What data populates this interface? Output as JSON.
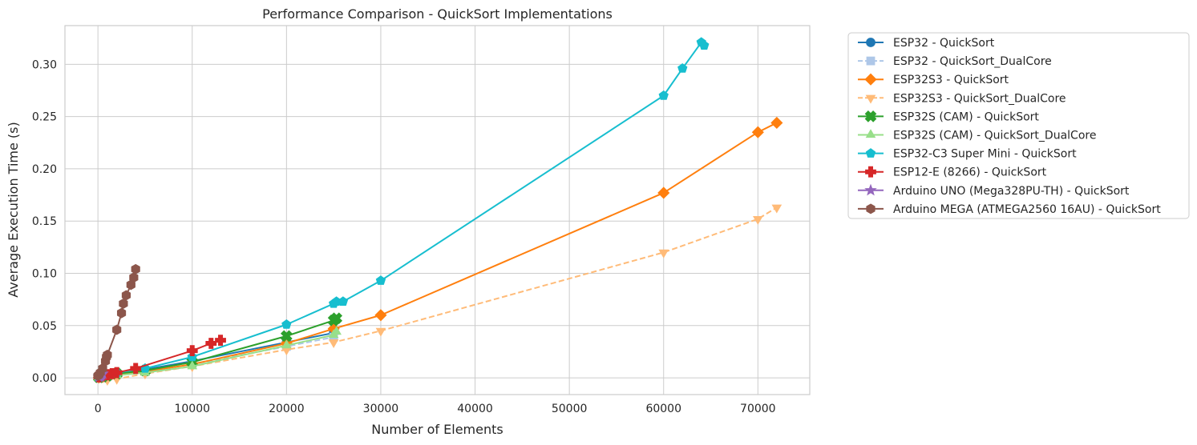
{
  "chart_data": {
    "type": "line",
    "title": "Performance Comparison - QuickSort Implementations",
    "xlabel": "Number of Elements",
    "ylabel": "Average Execution Time (s)",
    "xlim": [
      -3500,
      75500
    ],
    "ylim": [
      -0.016,
      0.337
    ],
    "xticks": [
      0,
      10000,
      20000,
      30000,
      40000,
      50000,
      60000,
      70000
    ],
    "yticks": [
      0.0,
      0.05,
      0.1,
      0.15,
      0.2,
      0.25,
      0.3
    ],
    "xtick_labels": [
      "0",
      "10000",
      "20000",
      "30000",
      "40000",
      "50000",
      "60000",
      "70000"
    ],
    "ytick_labels": [
      "0.00",
      "0.05",
      "0.10",
      "0.15",
      "0.20",
      "0.25",
      "0.30"
    ],
    "grid": true,
    "legend_position": "outside-right",
    "series": [
      {
        "name": "ESP32 - QuickSort",
        "color": "#1f77b4",
        "marker": "circle",
        "dash": "solid",
        "x": [
          100,
          500,
          1000,
          2000,
          5000,
          10000,
          20000,
          25000
        ],
        "y": [
          0.0005,
          0.001,
          0.002,
          0.004,
          0.008,
          0.016,
          0.034,
          0.043
        ]
      },
      {
        "name": "ESP32 - QuickSort_DualCore",
        "color": "#aec7e8",
        "marker": "square",
        "dash": "dashed",
        "x": [
          100,
          500,
          1000,
          2000,
          5000,
          10000,
          20000,
          25000
        ],
        "y": [
          0.0004,
          0.0008,
          0.0015,
          0.003,
          0.006,
          0.013,
          0.03,
          0.039
        ]
      },
      {
        "name": "ESP32S3 - QuickSort",
        "color": "#ff7f0e",
        "marker": "diamond",
        "dash": "solid",
        "x": [
          100,
          500,
          1000,
          2000,
          5000,
          10000,
          20000,
          25000,
          30000,
          60000,
          70000,
          72000
        ],
        "y": [
          0.0003,
          0.0008,
          0.0015,
          0.003,
          0.006,
          0.013,
          0.033,
          0.047,
          0.06,
          0.177,
          0.235,
          0.244
        ]
      },
      {
        "name": "ESP32S3 - QuickSort_DualCore",
        "color": "#ffbb78",
        "marker": "triangle-down",
        "dash": "dashed",
        "x": [
          100,
          1000,
          2000,
          5000,
          10000,
          20000,
          25000,
          30000,
          60000,
          70000,
          72000
        ],
        "y": [
          0.0003,
          -0.002,
          -0.001,
          0.004,
          0.011,
          0.027,
          0.034,
          0.045,
          0.12,
          0.152,
          0.163
        ]
      },
      {
        "name": "ESP32S (CAM) - QuickSort",
        "color": "#2ca02c",
        "marker": "x-filled",
        "dash": "solid",
        "x": [
          100,
          500,
          1000,
          2000,
          5000,
          10000,
          20000,
          25000,
          25300
        ],
        "y": [
          0.0005,
          0.001,
          0.002,
          0.004,
          0.007,
          0.015,
          0.04,
          0.055,
          0.057
        ]
      },
      {
        "name": "ESP32S (CAM) - QuickSort_DualCore",
        "color": "#98df8a",
        "marker": "triangle-up",
        "dash": "solid",
        "x": [
          100,
          1000,
          2000,
          5000,
          10000,
          20000,
          25000,
          25300
        ],
        "y": [
          0.0003,
          0.0015,
          0.0025,
          0.005,
          0.011,
          0.031,
          0.041,
          0.044
        ]
      },
      {
        "name": "ESP32-C3 Super Mini - QuickSort",
        "color": "#17becf",
        "marker": "pentagon",
        "dash": "solid",
        "x": [
          100,
          500,
          1000,
          2000,
          5000,
          10000,
          20000,
          25000,
          25300,
          26000,
          30000,
          60000,
          62000,
          64000,
          64300
        ],
        "y": [
          0.0005,
          0.0015,
          0.003,
          0.005,
          0.009,
          0.02,
          0.051,
          0.071,
          0.073,
          0.073,
          0.093,
          0.27,
          0.296,
          0.321,
          0.318
        ]
      },
      {
        "name": "ESP12-E (8266) - QuickSort",
        "color": "#d62728",
        "marker": "plus-filled",
        "dash": "solid",
        "x": [
          100,
          500,
          1000,
          1500,
          2000,
          4000,
          10000,
          12000,
          13000
        ],
        "y": [
          0.001,
          0.002,
          0.003,
          0.004,
          0.005,
          0.009,
          0.026,
          0.033,
          0.036
        ]
      },
      {
        "name": "Arduino UNO (Mega328PU-TH) - QuickSort",
        "color": "#9467bd",
        "marker": "star",
        "dash": "solid",
        "x": [
          100,
          200,
          300,
          400,
          500
        ],
        "y": [
          0.001,
          0.0015,
          0.002,
          0.003,
          0.004
        ]
      },
      {
        "name": "Arduino MEGA (ATMEGA2560 16AU) - QuickSort",
        "color": "#8c564b",
        "marker": "hexagon",
        "dash": "solid",
        "x": [
          0,
          100,
          250,
          500,
          800,
          900,
          1000,
          2000,
          2500,
          2700,
          3000,
          3500,
          3800,
          4000
        ],
        "y": [
          0.002,
          0.003,
          0.005,
          0.009,
          0.016,
          0.02,
          0.022,
          0.046,
          0.062,
          0.071,
          0.079,
          0.089,
          0.096,
          0.104
        ]
      }
    ]
  }
}
